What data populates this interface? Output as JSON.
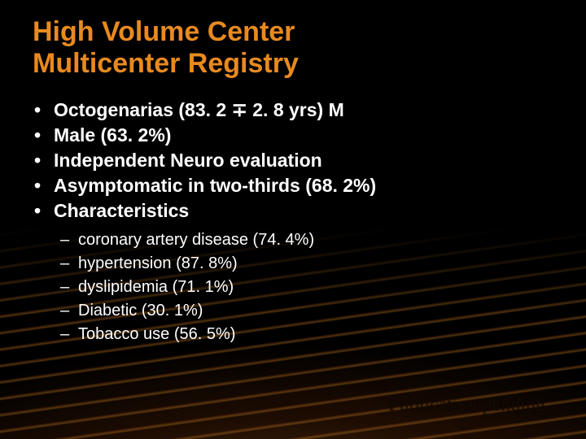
{
  "title_line1": "High Volume Center",
  "title_line2": "Multicenter Registry",
  "bullets": [
    "Octogenarias (83. 2 ∓ 2. 8 yrs) M",
    "Male (63. 2%)",
    "Independent Neuro evaluation",
    "Asymptomatic in two-thirds (68. 2%)",
    "Characteristics"
  ],
  "sub_bullets": [
    "coronary artery disease (74. 4%)",
    " hypertension (87. 8%)",
    "dyslipidemia (71. 1%)",
    "Diabetic (30. 1%)",
    "Tobacco use (56. 5%)"
  ],
  "footer": "Publication pending",
  "colors": {
    "title": "#e88a1f",
    "body_text": "#ffffff",
    "background": "#000000"
  }
}
